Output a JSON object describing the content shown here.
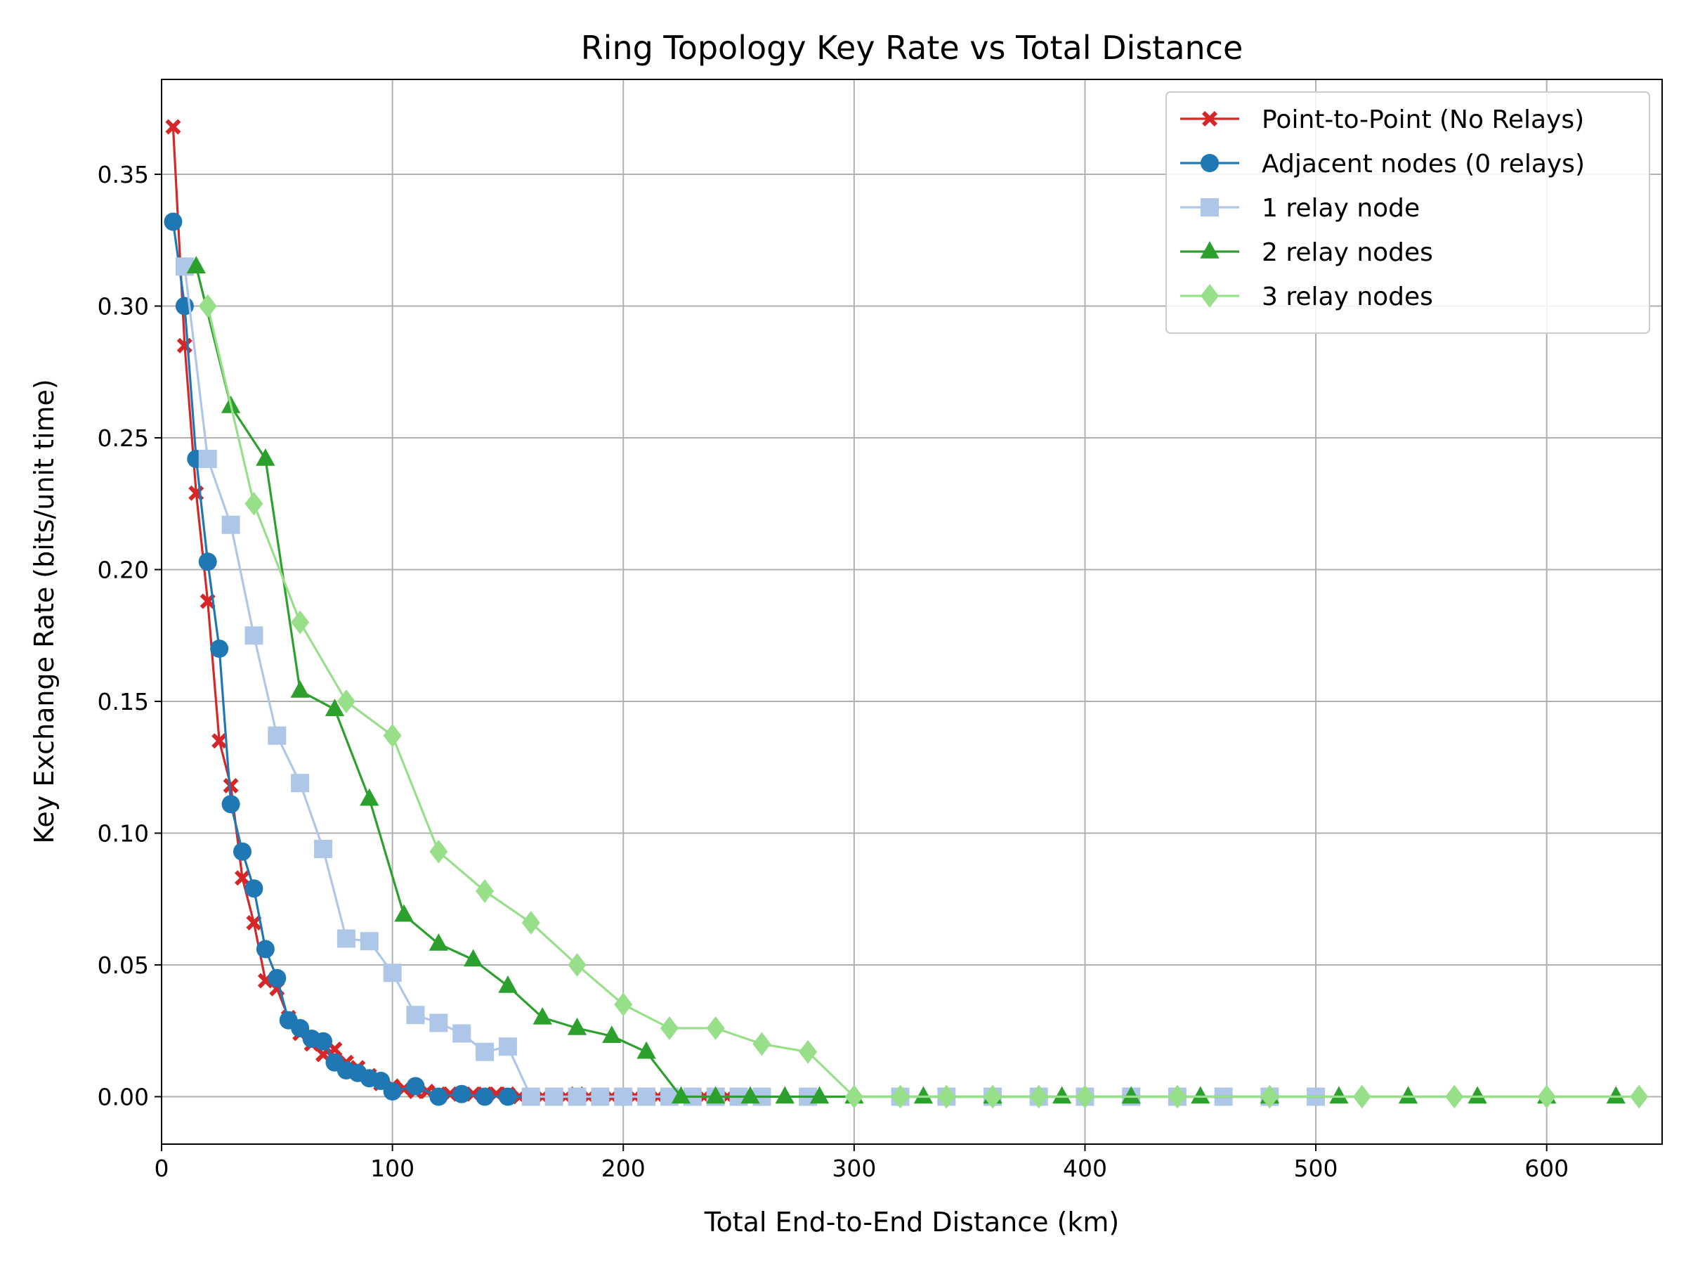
{
  "chart_data": {
    "type": "line",
    "title": "Ring Topology Key Rate vs Total Distance",
    "xlabel": "Total End-to-End Distance (km)",
    "ylabel": "Key Exchange Rate (bits/unit time)",
    "xlim": [
      0,
      650
    ],
    "ylim": [
      -0.018,
      0.386
    ],
    "xticks": [
      0,
      100,
      200,
      300,
      400,
      500,
      600
    ],
    "yticks": [
      0.0,
      0.05,
      0.1,
      0.15,
      0.2,
      0.25,
      0.3,
      0.35
    ],
    "xtick_labels": [
      "0",
      "100",
      "200",
      "300",
      "400",
      "500",
      "600"
    ],
    "ytick_labels": [
      "0.00",
      "0.05",
      "0.10",
      "0.15",
      "0.20",
      "0.25",
      "0.30",
      "0.35"
    ],
    "grid": true,
    "legend_position": "top-right",
    "series": [
      {
        "name": "Point-to-Point (No Relays)",
        "color": "#d62728",
        "marker": "x",
        "x": [
          5,
          10,
          15,
          20,
          25,
          30,
          35,
          40,
          45,
          50,
          55,
          60,
          65,
          70,
          75,
          80,
          85,
          90,
          95,
          100,
          105,
          110,
          115,
          120,
          125,
          130,
          135,
          140,
          145,
          150,
          155,
          160,
          165,
          170,
          175,
          180,
          185,
          190,
          195,
          200,
          205,
          210,
          215,
          220,
          225,
          230,
          235,
          240,
          245,
          250
        ],
        "y": [
          0.368,
          0.285,
          0.229,
          0.188,
          0.135,
          0.118,
          0.083,
          0.066,
          0.044,
          0.041,
          0.03,
          0.024,
          0.02,
          0.016,
          0.018,
          0.013,
          0.011,
          0.008,
          0.005,
          0.004,
          0.003,
          0.002,
          0.002,
          0.001,
          0.001,
          0.001,
          0.001,
          0.001,
          0.001,
          0.001,
          0.0,
          0.0,
          0.0,
          0.0,
          0.0,
          0.001,
          0.0,
          0.0,
          0.0,
          0.0,
          0.0,
          0.0,
          0.0,
          0.0,
          0.0,
          0.0,
          0.0,
          0.0,
          0.0,
          0.0
        ]
      },
      {
        "name": "Adjacent nodes (0 relays)",
        "color": "#1f77b4",
        "marker": "circle",
        "x": [
          5,
          10,
          15,
          20,
          25,
          30,
          35,
          40,
          45,
          50,
          55,
          60,
          65,
          70,
          75,
          80,
          85,
          90,
          95,
          100,
          110,
          120,
          130,
          140,
          150,
          160,
          170,
          180,
          190,
          200,
          210,
          220,
          230,
          240,
          250
        ],
        "y": [
          0.332,
          0.3,
          0.242,
          0.203,
          0.17,
          0.111,
          0.093,
          0.079,
          0.056,
          0.045,
          0.029,
          0.026,
          0.022,
          0.021,
          0.013,
          0.01,
          0.009,
          0.007,
          0.006,
          0.002,
          0.004,
          0.0,
          0.001,
          0.0,
          0.0,
          0.0,
          0.0,
          0.0,
          0.0,
          0.0,
          0.0,
          0.0,
          0.0,
          0.0,
          0.0
        ]
      },
      {
        "name": "1 relay node",
        "color": "#aec7e8",
        "marker": "square",
        "x": [
          10,
          20,
          30,
          40,
          50,
          60,
          70,
          80,
          90,
          100,
          110,
          120,
          130,
          140,
          150,
          160,
          170,
          180,
          190,
          200,
          210,
          220,
          230,
          240,
          250,
          260,
          280,
          320,
          340,
          360,
          380,
          400,
          420,
          440,
          460,
          480,
          500
        ],
        "y": [
          0.315,
          0.242,
          0.217,
          0.175,
          0.137,
          0.119,
          0.094,
          0.06,
          0.059,
          0.047,
          0.031,
          0.028,
          0.024,
          0.017,
          0.019,
          0.0,
          0.0,
          0.0,
          0.0,
          0.0,
          0.0,
          0.0,
          0.0,
          0.0,
          0.0,
          0.0,
          0.0,
          0.0,
          0.0,
          0.0,
          0.0,
          0.0,
          0.0,
          0.0,
          0.0,
          0.0,
          0.0
        ]
      },
      {
        "name": "2 relay nodes",
        "color": "#2ca02c",
        "marker": "triangle",
        "x": [
          15,
          30,
          45,
          60,
          75,
          90,
          105,
          120,
          135,
          150,
          165,
          180,
          195,
          210,
          225,
          240,
          255,
          270,
          285,
          300,
          330,
          360,
          390,
          420,
          450,
          480,
          510,
          540,
          570,
          600,
          630
        ],
        "y": [
          0.315,
          0.262,
          0.242,
          0.154,
          0.147,
          0.113,
          0.069,
          0.058,
          0.052,
          0.042,
          0.03,
          0.026,
          0.023,
          0.017,
          0.0,
          0.0,
          0.0,
          0.0,
          0.0,
          0.0,
          0.0,
          0.0,
          0.0,
          0.0,
          0.0,
          0.0,
          0.0,
          0.0,
          0.0,
          0.0,
          0.0
        ]
      },
      {
        "name": "3 relay nodes",
        "color": "#98df8a",
        "marker": "diamond",
        "x": [
          20,
          40,
          60,
          80,
          100,
          120,
          140,
          160,
          180,
          200,
          220,
          240,
          260,
          280,
          300,
          320,
          340,
          360,
          380,
          400,
          440,
          480,
          520,
          560,
          600,
          640
        ],
        "y": [
          0.3,
          0.225,
          0.18,
          0.15,
          0.137,
          0.093,
          0.078,
          0.066,
          0.05,
          0.035,
          0.026,
          0.026,
          0.02,
          0.017,
          0.0,
          0.0,
          0.0,
          0.0,
          0.0,
          0.0,
          0.0,
          0.0,
          0.0,
          0.0,
          0.0,
          0.0
        ]
      }
    ]
  }
}
